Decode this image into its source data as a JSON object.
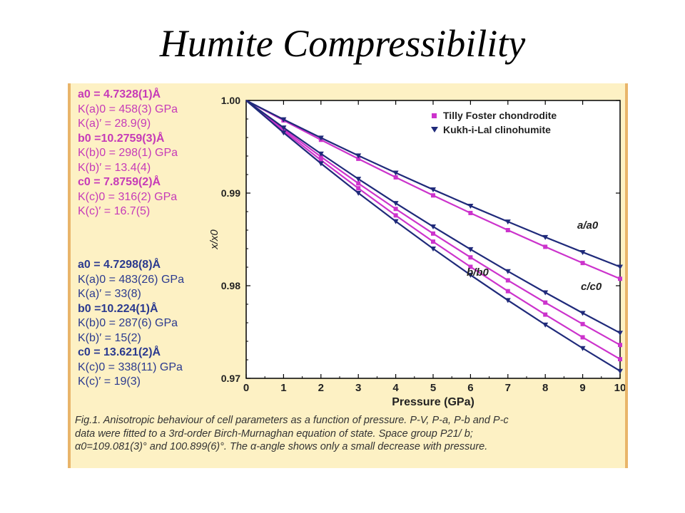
{
  "slide": {
    "title": "Humite Compressibility"
  },
  "params": {
    "tilly_foster": [
      {
        "text": "a0 = 4.7328(1)Å",
        "bold": true
      },
      {
        "text": "K(a)0 = 458(3) GPa",
        "bold": false
      },
      {
        "text": "K(a)′ = 28.9(9)",
        "bold": false
      },
      {
        "text": "b0 =10.2759(3)Å",
        "bold": true
      },
      {
        "text": "K(b)0 = 298(1) GPa",
        "bold": false
      },
      {
        "text": "K(b)′ = 13.4(4)",
        "bold": false
      },
      {
        "text": "c0 = 7.8759(2)Å",
        "bold": true
      },
      {
        "text": "K(c)0 = 316(2) GPa",
        "bold": false
      },
      {
        "text": "K(c)′ = 16.7(5)",
        "bold": false
      }
    ],
    "kukh_i_lal": [
      {
        "text": "a0 = 4.7298(8)Å",
        "bold": true
      },
      {
        "text": "K(a)0 = 483(26) GPa",
        "bold": false
      },
      {
        "text": "K(a)′ = 33(8)",
        "bold": false
      },
      {
        "text": "b0 =10.224(1)Å",
        "bold": true
      },
      {
        "text": "K(b)0 = 287(6) GPa",
        "bold": false
      },
      {
        "text": "K(b)′ = 15(2)",
        "bold": false
      },
      {
        "text": "c0 = 13.621(2)Å",
        "bold": true
      },
      {
        "text": "K(c)0 = 338(11) GPa",
        "bold": false
      },
      {
        "text": "K(c)′ = 19(3)",
        "bold": false
      }
    ]
  },
  "caption": {
    "line1": "Fig.1. Anisotropic behaviour of cell parameters as a function of pressure. P-V, P-a, P-b and P-c",
    "line2": "data were fitted to a 3rd-order Birch-Murnaghan equation of state. Space group P21/ b;",
    "line3": "α0=109.081(3)° and 100.899(6)°. The α-angle shows only a small decrease with pressure."
  },
  "colors": {
    "tilly_foster": "#cc33cc",
    "kukh_i_lal": "#1f2a7a",
    "panel_bg": "#fdf1c4",
    "panel_border": "#e9b56a"
  },
  "chart_data": {
    "type": "line",
    "xlabel": "Pressure (GPa)",
    "ylabel": "x/x0",
    "xlim": [
      0,
      10
    ],
    "ylim": [
      0.97,
      1.0
    ],
    "xticks": [
      "0",
      "1",
      "2",
      "3",
      "4",
      "5",
      "6",
      "7",
      "8",
      "9",
      "10"
    ],
    "yticks": [
      "1.00",
      "0.99",
      "0.98",
      "0.97"
    ],
    "legend": {
      "position": "top-right",
      "entries": [
        "Tilly Foster chondrodite",
        "Kukh-i-Lal clinohumite"
      ]
    },
    "curve_labels": [
      "a/a0",
      "c/c0",
      "b/b0"
    ],
    "series": [
      {
        "name": "Tilly Foster chondrodite",
        "param": "a/a0",
        "marker": "square",
        "x": [
          0,
          1,
          2,
          3,
          4,
          5,
          6,
          7,
          8,
          9,
          10
        ],
        "y": [
          1.0,
          0.99785,
          0.99575,
          0.9937,
          0.9917,
          0.98975,
          0.98785,
          0.986,
          0.9842,
          0.98245,
          0.98075
        ]
      },
      {
        "name": "Tilly Foster chondrodite",
        "param": "c/c0",
        "marker": "square",
        "x": [
          0,
          1,
          2,
          3,
          4,
          5,
          6,
          7,
          8,
          9,
          10
        ],
        "y": [
          1.0,
          0.9969,
          0.99392,
          0.99105,
          0.98829,
          0.98563,
          0.98306,
          0.98058,
          0.97818,
          0.97586,
          0.9736
        ]
      },
      {
        "name": "Tilly Foster chondrodite",
        "param": "b/b0",
        "marker": "square",
        "x": [
          0,
          1,
          2,
          3,
          4,
          5,
          6,
          7,
          8,
          9,
          10
        ],
        "y": [
          1.0,
          0.99672,
          0.99356,
          0.99052,
          0.98759,
          0.98476,
          0.98204,
          0.97941,
          0.97688,
          0.97443,
          0.97207
        ]
      },
      {
        "name": "Kukh-i-Lal clinohumite",
        "param": "a/a0",
        "marker": "triangle-down",
        "x": [
          0,
          1,
          2,
          3,
          4,
          5,
          6,
          7,
          8,
          9,
          10
        ],
        "y": [
          1.0,
          0.99795,
          0.99597,
          0.99405,
          0.99219,
          0.99038,
          0.98862,
          0.98691,
          0.98524,
          0.98362,
          0.98204
        ]
      },
      {
        "name": "Kukh-i-Lal clinohumite",
        "param": "c/c0",
        "marker": "triangle-down",
        "x": [
          0,
          1,
          2,
          3,
          4,
          5,
          6,
          7,
          8,
          9,
          10
        ],
        "y": [
          1.0,
          0.99707,
          0.99425,
          0.99153,
          0.98891,
          0.98638,
          0.98393,
          0.98156,
          0.97927,
          0.97705,
          0.9749
        ]
      },
      {
        "name": "Kukh-i-Lal clinohumite",
        "param": "b/b0",
        "marker": "triangle-down",
        "x": [
          0,
          1,
          2,
          3,
          4,
          5,
          6,
          7,
          8,
          9,
          10
        ],
        "y": [
          1.0,
          0.99653,
          0.9932,
          0.99001,
          0.98695,
          0.984,
          0.98116,
          0.97843,
          0.97579,
          0.97325,
          0.97079
        ]
      }
    ]
  }
}
